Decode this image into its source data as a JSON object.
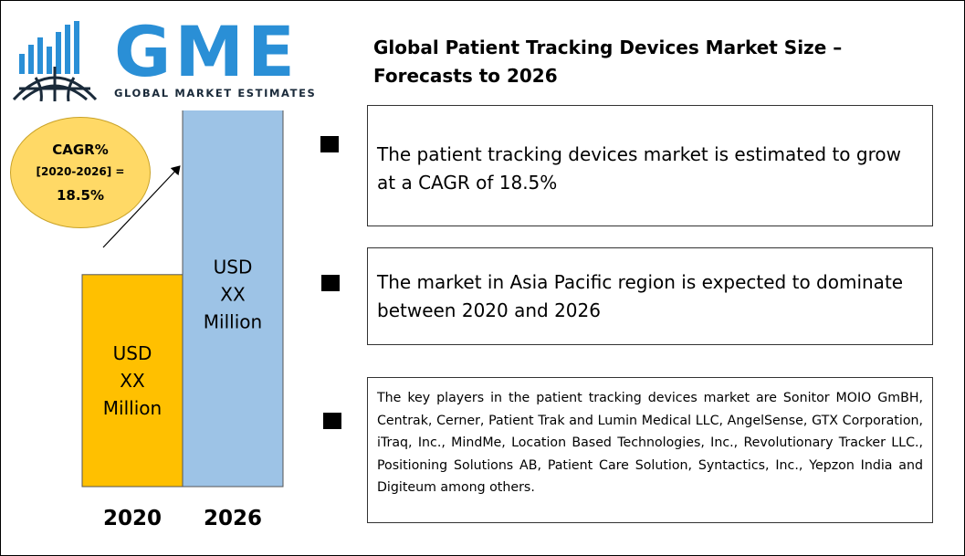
{
  "logo": {
    "letters": "GME",
    "subtitle": "GLOBAL MARKET ESTIMATES",
    "icon": "globe-with-bars-icon",
    "colors": {
      "primary": "#2a8fd6",
      "dark": "#1a2a3a"
    }
  },
  "title": "Global Patient Tracking Devices Market Size – Forecasts to 2026",
  "cagr": {
    "label": "CAGR%",
    "period": "[2020-2026] =",
    "value": "18.5%",
    "color": "#ffd966"
  },
  "chart_data": {
    "type": "bar",
    "categories": [
      "2020",
      "2026"
    ],
    "values": [
      0.54,
      0.98
    ],
    "value_labels": [
      "USD\nXX\nMillion",
      "USD\nXX\nMillion"
    ],
    "colors": [
      "#ffc000",
      "#9dc3e6"
    ],
    "title": "",
    "xlabel": "",
    "ylabel": "",
    "ylim": [
      0,
      1
    ],
    "grid": false,
    "annotation": "upward trend arrow"
  },
  "bullets": [
    "The patient tracking devices market is estimated to grow at a CAGR of 18.5%",
    "The market in Asia Pacific region is expected to dominate between 2020 and 2026",
    "The key players in the patient tracking devices market are Sonitor MOIO GmBH, Centrak, Cerner, Patient Trak and Lumin Medical LLC, AngelSense, GTX Corporation, iTraq, Inc., MindMe, Location Based Technologies, Inc., Revolutionary Tracker LLC., Positioning Solutions AB, Patient Care Solution, Syntactics, Inc., Yepzon India and Digiteum among others."
  ]
}
